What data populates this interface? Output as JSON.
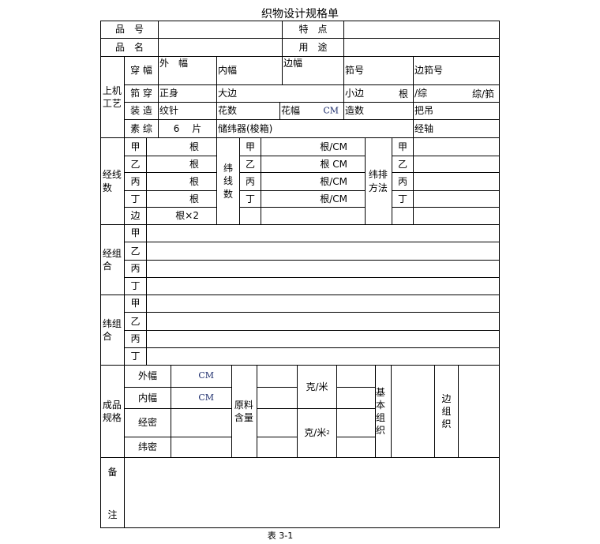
{
  "title": "织物设计规格单",
  "caption": "表 3-1",
  "header": {
    "pinhao": "品　号",
    "tedian": "特　点",
    "pinming": "品　名",
    "yongtu": "用　途"
  },
  "machine": {
    "label": "上机工艺",
    "chuanfu": "穿 幅",
    "waifu": "外　幅",
    "neifu": "内幅",
    "bianfu": "边幅",
    "kouhao": "筘号",
    "biankouhao": "边筘号",
    "kouchuan": "筘 穿",
    "zhengshen": "正身",
    "dabian": "大边",
    "xiaobian": "小边",
    "gen": "根",
    "zong": "/综",
    "zongkou": "综/筘",
    "zhuangzao": "装 造",
    "wenzhen": "纹针",
    "huashu": "花数",
    "huafu": "花幅",
    "cm": "CM",
    "zaoshu": "造数",
    "badiao": "把吊",
    "suzong": "素 综",
    "pian": "6　 片",
    "chuweiqi": "储纬器(梭箱)",
    "jingzhou": "经轴"
  },
  "warp": {
    "label": "经线数",
    "rows": [
      "甲",
      "乙",
      "丙",
      "丁",
      "边"
    ],
    "values": [
      "根",
      "根",
      "根",
      "根",
      "根×2"
    ],
    "weft_label": "纬线数",
    "weft_rows": [
      "甲",
      "乙",
      "丙",
      "丁"
    ],
    "weft_values": [
      "根/CM",
      "根 CM",
      "根/CM",
      "根/CM"
    ],
    "arrange_label": "纬排方法",
    "arrange_rows": [
      "甲",
      "乙",
      "丙",
      "丁"
    ]
  },
  "warp_combo": {
    "label": "经组合",
    "rows": [
      "甲",
      "乙",
      "丙",
      "丁"
    ]
  },
  "weft_combo": {
    "label": "纬组合",
    "rows": [
      "甲",
      "乙",
      "丙",
      "丁"
    ]
  },
  "product": {
    "label": "成品规格",
    "waifu": "外幅",
    "neifu": "内幅",
    "jingmi": "经密",
    "weimi": "纬密",
    "cm": "CM",
    "material": "原料含量",
    "gm": "克/米",
    "gm2": "克/米",
    "gm2_sup": "2",
    "basic_weave": "基本组织",
    "edge_weave": "边组织"
  },
  "remarks": {
    "top": "备",
    "bottom": "注"
  }
}
